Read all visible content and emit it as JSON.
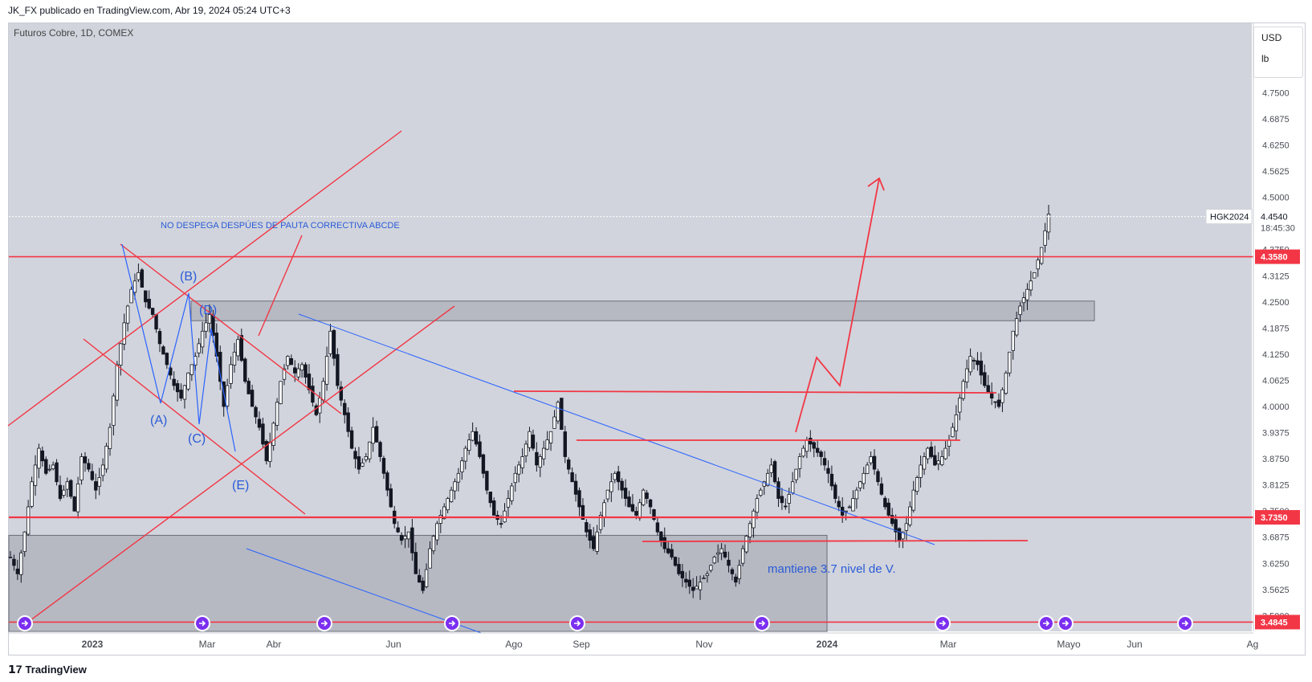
{
  "header": {
    "publish_line": "JK_FX publicado en TradingView.com, Abr 19, 2024 05:24 UTC+3"
  },
  "chart_title": "Futuros Cobre, 1D, COMEX",
  "axis_units": {
    "currency": "USD",
    "unit": "lb"
  },
  "footer": {
    "brand": "TradingView"
  },
  "colors": {
    "background": "#d1d4dc",
    "red_line": "#f23645",
    "blue_line": "#2962ff",
    "zone": "#9598a1",
    "candle": "#131722",
    "label_blue": "#2a5bd7"
  },
  "annotations": {
    "pattern_note": "NO DESPEGA DESPÚES DE PAUTA CORRECTIVA ABCDE",
    "support_note": "mantiene 3.7 nivel de V.",
    "wave_labels": [
      "(A)",
      "(B)",
      "(C)",
      "(D)",
      "(E)"
    ]
  },
  "chart_data": {
    "type": "candlestick",
    "symbol": "HGK2024",
    "last_price": "4.4540",
    "countdown": "18:45:30",
    "y_axis_ticks": [
      "4.7500",
      "4.6875",
      "4.6250",
      "4.5625",
      "4.5000",
      "4.3750",
      "4.3125",
      "4.2500",
      "4.1875",
      "4.1250",
      "4.0625",
      "4.0000",
      "3.9375",
      "3.8750",
      "3.8125",
      "3.7500",
      "3.6875",
      "3.6250",
      "3.5625",
      "3.5000"
    ],
    "x_axis_ticks": [
      "2023",
      "Mar",
      "Abr",
      "Jun",
      "Ago",
      "Sep",
      "Nov",
      "2024",
      "Mar",
      "Mayo",
      "Jun",
      "Ag"
    ],
    "horizontal_levels": [
      {
        "label": "4.3580",
        "value": 4.358
      },
      {
        "label": "3.7350",
        "value": 3.735
      },
      {
        "label": "3.4845",
        "value": 3.4845
      }
    ],
    "ylim": [
      3.47,
      4.82
    ],
    "price_path": [
      [
        0,
        3.64
      ],
      [
        2,
        3.6
      ],
      [
        4,
        3.7
      ],
      [
        6,
        3.82
      ],
      [
        8,
        3.9
      ],
      [
        10,
        3.84
      ],
      [
        12,
        3.86
      ],
      [
        14,
        3.78
      ],
      [
        16,
        3.82
      ],
      [
        18,
        3.75
      ],
      [
        20,
        3.88
      ],
      [
        22,
        3.85
      ],
      [
        24,
        3.8
      ],
      [
        26,
        3.86
      ],
      [
        28,
        3.95
      ],
      [
        30,
        4.1
      ],
      [
        32,
        4.2
      ],
      [
        34,
        4.28
      ],
      [
        36,
        4.32
      ],
      [
        38,
        4.25
      ],
      [
        40,
        4.22
      ],
      [
        42,
        4.15
      ],
      [
        44,
        4.1
      ],
      [
        46,
        4.05
      ],
      [
        48,
        4.02
      ],
      [
        50,
        4.08
      ],
      [
        52,
        4.12
      ],
      [
        54,
        4.18
      ],
      [
        56,
        4.22
      ],
      [
        58,
        4.12
      ],
      [
        60,
        4.0
      ],
      [
        62,
        4.1
      ],
      [
        64,
        4.16
      ],
      [
        66,
        4.06
      ],
      [
        68,
        4.0
      ],
      [
        70,
        3.95
      ],
      [
        72,
        3.87
      ],
      [
        74,
        3.96
      ],
      [
        76,
        4.06
      ],
      [
        78,
        4.12
      ],
      [
        80,
        4.08
      ],
      [
        82,
        4.1
      ],
      [
        84,
        4.04
      ],
      [
        86,
        3.98
      ],
      [
        88,
        4.06
      ],
      [
        90,
        4.18
      ],
      [
        92,
        4.05
      ],
      [
        94,
        3.98
      ],
      [
        96,
        3.9
      ],
      [
        98,
        3.85
      ],
      [
        100,
        3.88
      ],
      [
        102,
        3.95
      ],
      [
        104,
        3.88
      ],
      [
        106,
        3.8
      ],
      [
        108,
        3.72
      ],
      [
        110,
        3.68
      ],
      [
        112,
        3.7
      ],
      [
        114,
        3.6
      ],
      [
        116,
        3.56
      ],
      [
        118,
        3.66
      ],
      [
        120,
        3.72
      ],
      [
        122,
        3.76
      ],
      [
        124,
        3.8
      ],
      [
        126,
        3.84
      ],
      [
        128,
        3.9
      ],
      [
        130,
        3.94
      ],
      [
        132,
        3.88
      ],
      [
        134,
        3.8
      ],
      [
        136,
        3.74
      ],
      [
        138,
        3.72
      ],
      [
        140,
        3.78
      ],
      [
        142,
        3.84
      ],
      [
        144,
        3.88
      ],
      [
        146,
        3.94
      ],
      [
        148,
        3.86
      ],
      [
        150,
        3.9
      ],
      [
        152,
        3.94
      ],
      [
        154,
        4.01
      ],
      [
        156,
        3.88
      ],
      [
        158,
        3.82
      ],
      [
        160,
        3.76
      ],
      [
        162,
        3.7
      ],
      [
        164,
        3.66
      ],
      [
        166,
        3.74
      ],
      [
        168,
        3.8
      ],
      [
        170,
        3.84
      ],
      [
        172,
        3.8
      ],
      [
        174,
        3.76
      ],
      [
        176,
        3.74
      ],
      [
        178,
        3.8
      ],
      [
        180,
        3.76
      ],
      [
        182,
        3.7
      ],
      [
        184,
        3.66
      ],
      [
        186,
        3.64
      ],
      [
        188,
        3.6
      ],
      [
        190,
        3.58
      ],
      [
        192,
        3.56
      ],
      [
        194,
        3.58
      ],
      [
        196,
        3.6
      ],
      [
        198,
        3.64
      ],
      [
        200,
        3.66
      ],
      [
        202,
        3.62
      ],
      [
        204,
        3.58
      ],
      [
        206,
        3.66
      ],
      [
        208,
        3.72
      ],
      [
        210,
        3.78
      ],
      [
        212,
        3.82
      ],
      [
        214,
        3.86
      ],
      [
        216,
        3.78
      ],
      [
        218,
        3.76
      ],
      [
        220,
        3.82
      ],
      [
        222,
        3.88
      ],
      [
        224,
        3.92
      ],
      [
        226,
        3.9
      ],
      [
        228,
        3.88
      ],
      [
        230,
        3.84
      ],
      [
        232,
        3.78
      ],
      [
        234,
        3.74
      ],
      [
        236,
        3.76
      ],
      [
        238,
        3.8
      ],
      [
        240,
        3.84
      ],
      [
        242,
        3.88
      ],
      [
        244,
        3.82
      ],
      [
        246,
        3.76
      ],
      [
        248,
        3.72
      ],
      [
        250,
        3.68
      ],
      [
        252,
        3.72
      ],
      [
        254,
        3.8
      ],
      [
        256,
        3.86
      ],
      [
        258,
        3.9
      ],
      [
        260,
        3.86
      ],
      [
        262,
        3.88
      ],
      [
        264,
        3.92
      ],
      [
        266,
        3.98
      ],
      [
        268,
        4.06
      ],
      [
        270,
        4.12
      ],
      [
        272,
        4.1
      ],
      [
        274,
        4.05
      ],
      [
        276,
        4.02
      ],
      [
        278,
        4.0
      ],
      [
        280,
        4.08
      ],
      [
        282,
        4.18
      ],
      [
        284,
        4.24
      ],
      [
        286,
        4.28
      ],
      [
        288,
        4.32
      ],
      [
        290,
        4.38
      ],
      [
        292,
        4.46
      ]
    ]
  }
}
